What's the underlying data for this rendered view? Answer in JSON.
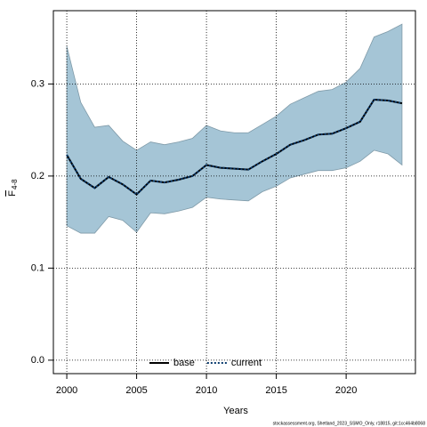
{
  "chart_data": {
    "type": "line",
    "xlabel": "Years",
    "ylabel": "F",
    "ylabel_sub": "4-8",
    "footer": "stockassessment.org, Shetland_2023_SSMO_Only, r18815, git:1cc464b8068",
    "x": [
      2000,
      2001,
      2002,
      2003,
      2004,
      2005,
      2006,
      2007,
      2008,
      2009,
      2010,
      2011,
      2012,
      2013,
      2014,
      2015,
      2016,
      2017,
      2018,
      2019,
      2020,
      2021,
      2022,
      2023,
      2024
    ],
    "series": [
      {
        "name": "base",
        "color": "#000000",
        "dash": "solid",
        "values": [
          0.223,
          0.197,
          0.187,
          0.199,
          0.191,
          0.18,
          0.195,
          0.193,
          0.196,
          0.2,
          0.212,
          0.209,
          0.208,
          0.207,
          0.216,
          0.224,
          0.234,
          0.239,
          0.245,
          0.246,
          0.252,
          0.259,
          0.283,
          0.282,
          0.279
        ]
      },
      {
        "name": "current",
        "color": "#0a3b6e",
        "dash": "dotted",
        "values": [
          0.223,
          0.197,
          0.187,
          0.199,
          0.191,
          0.18,
          0.195,
          0.193,
          0.196,
          0.2,
          0.212,
          0.209,
          0.208,
          0.207,
          0.216,
          0.224,
          0.234,
          0.239,
          0.245,
          0.246,
          0.252,
          0.259,
          0.283,
          0.282,
          0.279
        ]
      }
    ],
    "band": {
      "color": "#a5c5d6",
      "upper": [
        0.341,
        0.28,
        0.253,
        0.255,
        0.238,
        0.228,
        0.237,
        0.234,
        0.237,
        0.241,
        0.255,
        0.249,
        0.247,
        0.247,
        0.256,
        0.265,
        0.278,
        0.285,
        0.292,
        0.294,
        0.302,
        0.317,
        0.351,
        0.357,
        0.365
      ],
      "lower": [
        0.146,
        0.138,
        0.138,
        0.156,
        0.152,
        0.139,
        0.16,
        0.159,
        0.162,
        0.166,
        0.177,
        0.175,
        0.174,
        0.173,
        0.183,
        0.189,
        0.198,
        0.202,
        0.206,
        0.206,
        0.209,
        0.216,
        0.228,
        0.224,
        0.212
      ]
    },
    "xlim": [
      1999.04,
      2024.96
    ],
    "ylim": [
      -0.0146,
      0.3796
    ],
    "xticks": [
      2000,
      2005,
      2010,
      2015,
      2020
    ],
    "yticks": [
      {
        "value": 0,
        "label": "0.0"
      },
      0.1,
      0.2,
      0.3
    ],
    "grid": true,
    "legend": "bottom"
  }
}
